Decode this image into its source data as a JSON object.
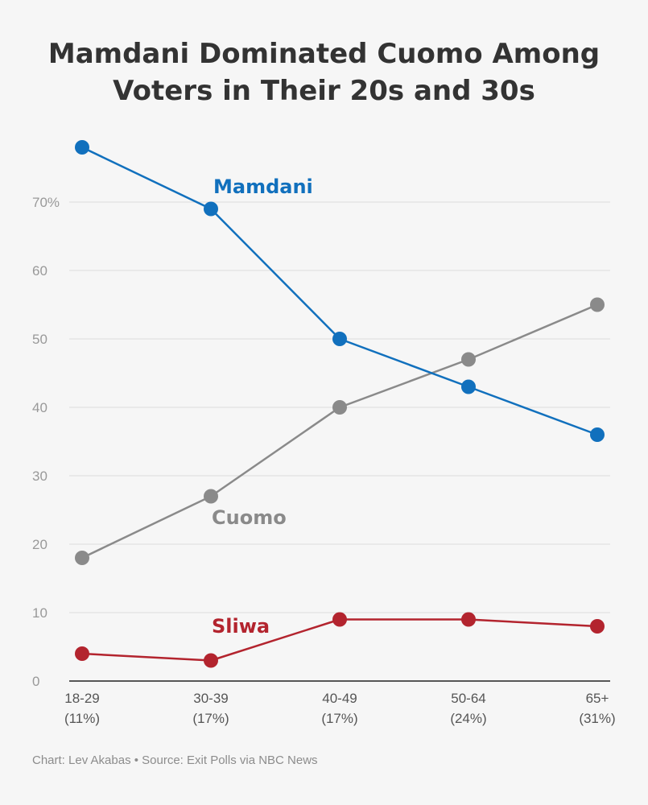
{
  "chart_data": {
    "type": "line",
    "title_lines": [
      "Mamdani Dominated Cuomo Among",
      "Voters in Their 20s and 30s"
    ],
    "categories": [
      [
        "18-29",
        "(11%)"
      ],
      [
        "30-39",
        "(17%)"
      ],
      [
        "40-49",
        "(17%)"
      ],
      [
        "50-64",
        "(24%)"
      ],
      [
        "65+",
        "(31%)"
      ]
    ],
    "y_ticks": [
      "0",
      "10",
      "20",
      "30",
      "40",
      "50",
      "60",
      "70%"
    ],
    "ylim": [
      0,
      80
    ],
    "grid": true,
    "xlabel": "",
    "ylabel": "",
    "series": [
      {
        "name": "Mamdani",
        "color": "#1170bd",
        "values": [
          78,
          69,
          50,
          43,
          36
        ]
      },
      {
        "name": "Cuomo",
        "color": "#8a8a8a",
        "values": [
          18,
          27,
          40,
          47,
          55
        ]
      },
      {
        "name": "Sliwa",
        "color": "#b3242e",
        "values": [
          4,
          3,
          9,
          9,
          8
        ]
      }
    ],
    "source": "Chart: Lev Akabas • Source: Exit Polls via NBC News"
  }
}
